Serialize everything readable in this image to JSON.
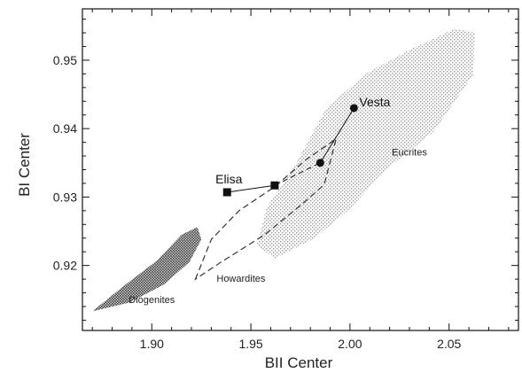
{
  "chart_data": {
    "type": "scatter",
    "xlabel": "BII Center",
    "ylabel": "BI Center",
    "xlim": [
      1.865,
      2.085
    ],
    "ylim": [
      0.9105,
      0.9575
    ],
    "x_ticks": [
      1.9,
      1.95,
      2.0,
      2.05
    ],
    "x_tick_labels": [
      "1.90",
      "1.95",
      "2.00",
      "2.05"
    ],
    "y_ticks": [
      0.92,
      0.93,
      0.94,
      0.95
    ],
    "y_tick_labels": [
      "0.92",
      "0.93",
      "0.94",
      "0.95"
    ],
    "regions": [
      {
        "name": "Eucrites",
        "label_at": [
          2.03,
          0.9361
        ],
        "fill": "light-stipple",
        "polygon": [
          [
            1.953,
            0.923
          ],
          [
            1.958,
            0.9285
          ],
          [
            1.972,
            0.9345
          ],
          [
            1.988,
            0.943
          ],
          [
            2.008,
            0.948
          ],
          [
            2.03,
            0.9515
          ],
          [
            2.053,
            0.9546
          ],
          [
            2.063,
            0.954
          ],
          [
            2.062,
            0.9478
          ],
          [
            2.042,
            0.9395
          ],
          [
            2.018,
            0.934
          ],
          [
            2.0,
            0.9283
          ],
          [
            1.982,
            0.924
          ],
          [
            1.962,
            0.921
          ]
        ]
      },
      {
        "name": "Howardites",
        "label_at": [
          1.945,
          0.9176
        ],
        "fill": "dashed-outline",
        "polygon": [
          [
            1.922,
            0.918
          ],
          [
            1.93,
            0.9238
          ],
          [
            1.944,
            0.928
          ],
          [
            1.962,
            0.9315
          ],
          [
            1.978,
            0.9355
          ],
          [
            1.993,
            0.9385
          ],
          [
            1.987,
            0.9318
          ],
          [
            1.976,
            0.929
          ],
          [
            1.957,
            0.9245
          ],
          [
            1.935,
            0.9205
          ]
        ]
      },
      {
        "name": "Diogenites",
        "label_at": [
          1.9,
          0.9145
        ],
        "fill": "dense-stipple",
        "polygon": [
          [
            1.87,
            0.9133
          ],
          [
            1.885,
            0.9168
          ],
          [
            1.903,
            0.9208
          ],
          [
            1.915,
            0.9245
          ],
          [
            1.923,
            0.9256
          ],
          [
            1.925,
            0.9238
          ],
          [
            1.919,
            0.9205
          ],
          [
            1.906,
            0.9172
          ],
          [
            1.889,
            0.9146
          ]
        ]
      }
    ],
    "series": [
      {
        "name": "Vesta",
        "marker": "circle",
        "points": [
          [
            1.985,
            0.935
          ],
          [
            2.002,
            0.943
          ]
        ]
      },
      {
        "name": "Elisa",
        "marker": "square",
        "points": [
          [
            1.938,
            0.9307
          ],
          [
            1.962,
            0.9317
          ]
        ]
      }
    ],
    "connector": [
      [
        1.962,
        0.9317
      ],
      [
        1.985,
        0.935
      ]
    ]
  }
}
